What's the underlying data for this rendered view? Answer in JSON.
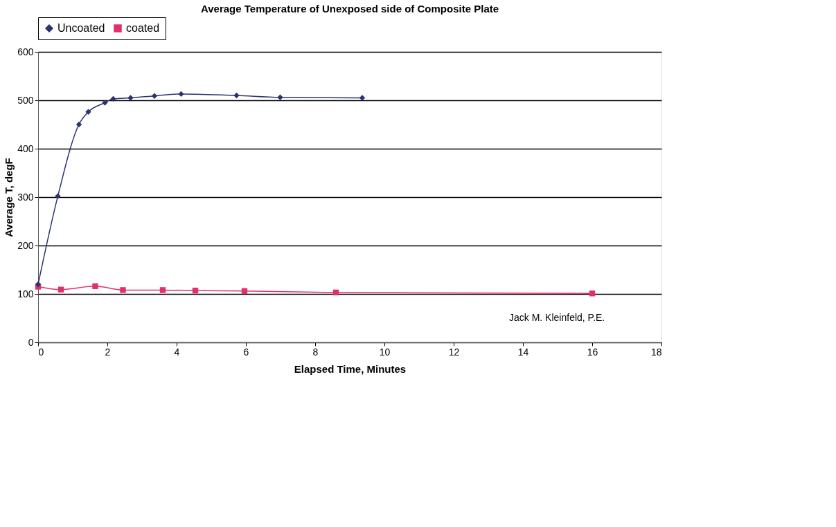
{
  "chart_data": {
    "type": "line",
    "title": "Average Temperature of Unexposed side of Composite Plate",
    "xlabel": "Elapsed Time, Minutes",
    "ylabel": "Average T, degF",
    "xlim": [
      0,
      18
    ],
    "xticks": [
      0,
      2,
      4,
      6,
      8,
      10,
      12,
      14,
      16,
      18
    ],
    "ylim": [
      0,
      600
    ],
    "yticks": [
      0,
      100,
      200,
      300,
      400,
      500,
      600
    ],
    "grid": "y",
    "legend": "top",
    "annotations": [
      "Jack M. Kleinfeld, P.E."
    ],
    "series": [
      {
        "name": "Uncoated",
        "color": "#2b3370",
        "marker": "diamond",
        "x": [
          0,
          0.57,
          1.18,
          1.45,
          1.93,
          2.17,
          2.67,
          3.36,
          4.13,
          5.73,
          6.99,
          9.36
        ],
        "values": [
          120,
          302,
          450,
          476,
          495,
          503,
          505,
          509,
          513,
          510,
          506,
          505
        ]
      },
      {
        "name": "coated",
        "color": "#e0306a",
        "marker": "square",
        "x": [
          0,
          0.66,
          1.65,
          2.45,
          3.6,
          4.54,
          5.96,
          8.6,
          16
        ],
        "values": [
          115,
          109,
          116,
          108,
          108,
          107,
          106,
          103,
          101
        ]
      }
    ]
  }
}
